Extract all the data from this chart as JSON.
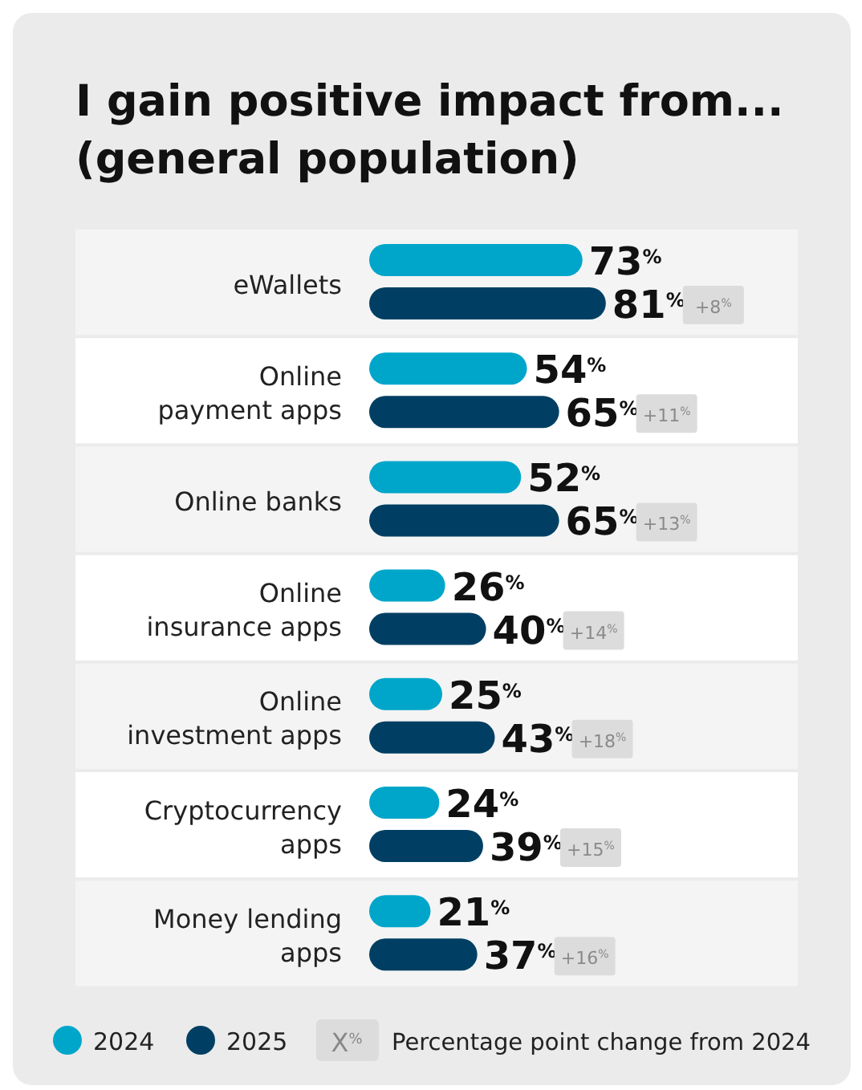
{
  "chart_data": {
    "type": "bar",
    "orientation": "horizontal",
    "title": "I gain positive impact from...\n(general population)",
    "categories": [
      "eWallets",
      "Online\npayment apps",
      "Online banks",
      "Online\ninsurance apps",
      "Online\ninvestment apps",
      "Cryptocurrency\napps",
      "Money lending\napps"
    ],
    "series": [
      {
        "name": "2024",
        "color": "#00a6c9",
        "values": [
          73,
          54,
          52,
          26,
          25,
          24,
          21
        ],
        "value_labels": [
          "73$^{%}$",
          "54$^{%}$",
          "52$^{%}$",
          "26$^{%}$",
          "25$^{%}$",
          "24$^{%}$",
          "21$^{%}$"
        ]
      },
      {
        "name": "2025",
        "color": "#003f63",
        "values": [
          81,
          65,
          65,
          40,
          43,
          39,
          37
        ],
        "value_labels": [
          "81$^{%}$",
          "65$^{%}$",
          "65$^{%}$",
          "40$^{%}$",
          "43$^{%}$",
          "39$^{%}$",
          "37$^{%}$"
        ]
      }
    ],
    "legend": "bottom",
    "annotations": [
      "+8$^{%}$",
      "+11$^{%}$",
      "+13$^{%}$",
      "+14$^{%}$",
      "+18$^{%}$",
      "+15$^{%}$",
      "+16$^{%}$",
      "X$^{%}$",
      "Percentage point change from 2024"
    ]
  }
}
